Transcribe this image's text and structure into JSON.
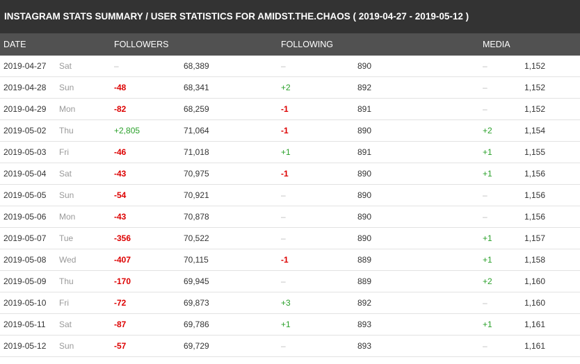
{
  "title": "INSTAGRAM STATS SUMMARY / USER STATISTICS FOR AMIDST.THE.CHAOS ( 2019-04-27 - 2019-05-12 )",
  "headers": {
    "date": "DATE",
    "followers": "FOLLOWERS",
    "following": "FOLLOWING",
    "media": "MEDIA"
  },
  "colors": {
    "negative": "#dd0000",
    "positive": "#2aa02a",
    "none": "#bbbbbb"
  },
  "rows": [
    {
      "date": "2019-04-27",
      "day": "Sat",
      "followers_change": "–",
      "followers": "68,389",
      "following_change": "–",
      "following": "890",
      "media_change": "–",
      "media": "1,152"
    },
    {
      "date": "2019-04-28",
      "day": "Sun",
      "followers_change": "-48",
      "followers": "68,341",
      "following_change": "+2",
      "following": "892",
      "media_change": "–",
      "media": "1,152"
    },
    {
      "date": "2019-04-29",
      "day": "Mon",
      "followers_change": "-82",
      "followers": "68,259",
      "following_change": "-1",
      "following": "891",
      "media_change": "–",
      "media": "1,152"
    },
    {
      "date": "2019-05-02",
      "day": "Thu",
      "followers_change": "+2,805",
      "followers": "71,064",
      "following_change": "-1",
      "following": "890",
      "media_change": "+2",
      "media": "1,154"
    },
    {
      "date": "2019-05-03",
      "day": "Fri",
      "followers_change": "-46",
      "followers": "71,018",
      "following_change": "+1",
      "following": "891",
      "media_change": "+1",
      "media": "1,155"
    },
    {
      "date": "2019-05-04",
      "day": "Sat",
      "followers_change": "-43",
      "followers": "70,975",
      "following_change": "-1",
      "following": "890",
      "media_change": "+1",
      "media": "1,156"
    },
    {
      "date": "2019-05-05",
      "day": "Sun",
      "followers_change": "-54",
      "followers": "70,921",
      "following_change": "–",
      "following": "890",
      "media_change": "–",
      "media": "1,156"
    },
    {
      "date": "2019-05-06",
      "day": "Mon",
      "followers_change": "-43",
      "followers": "70,878",
      "following_change": "–",
      "following": "890",
      "media_change": "–",
      "media": "1,156"
    },
    {
      "date": "2019-05-07",
      "day": "Tue",
      "followers_change": "-356",
      "followers": "70,522",
      "following_change": "–",
      "following": "890",
      "media_change": "+1",
      "media": "1,157"
    },
    {
      "date": "2019-05-08",
      "day": "Wed",
      "followers_change": "-407",
      "followers": "70,115",
      "following_change": "-1",
      "following": "889",
      "media_change": "+1",
      "media": "1,158"
    },
    {
      "date": "2019-05-09",
      "day": "Thu",
      "followers_change": "-170",
      "followers": "69,945",
      "following_change": "–",
      "following": "889",
      "media_change": "+2",
      "media": "1,160"
    },
    {
      "date": "2019-05-10",
      "day": "Fri",
      "followers_change": "-72",
      "followers": "69,873",
      "following_change": "+3",
      "following": "892",
      "media_change": "–",
      "media": "1,160"
    },
    {
      "date": "2019-05-11",
      "day": "Sat",
      "followers_change": "-87",
      "followers": "69,786",
      "following_change": "+1",
      "following": "893",
      "media_change": "+1",
      "media": "1,161"
    },
    {
      "date": "2019-05-12",
      "day": "Sun",
      "followers_change": "-57",
      "followers": "69,729",
      "following_change": "–",
      "following": "893",
      "media_change": "–",
      "media": "1,161"
    }
  ]
}
